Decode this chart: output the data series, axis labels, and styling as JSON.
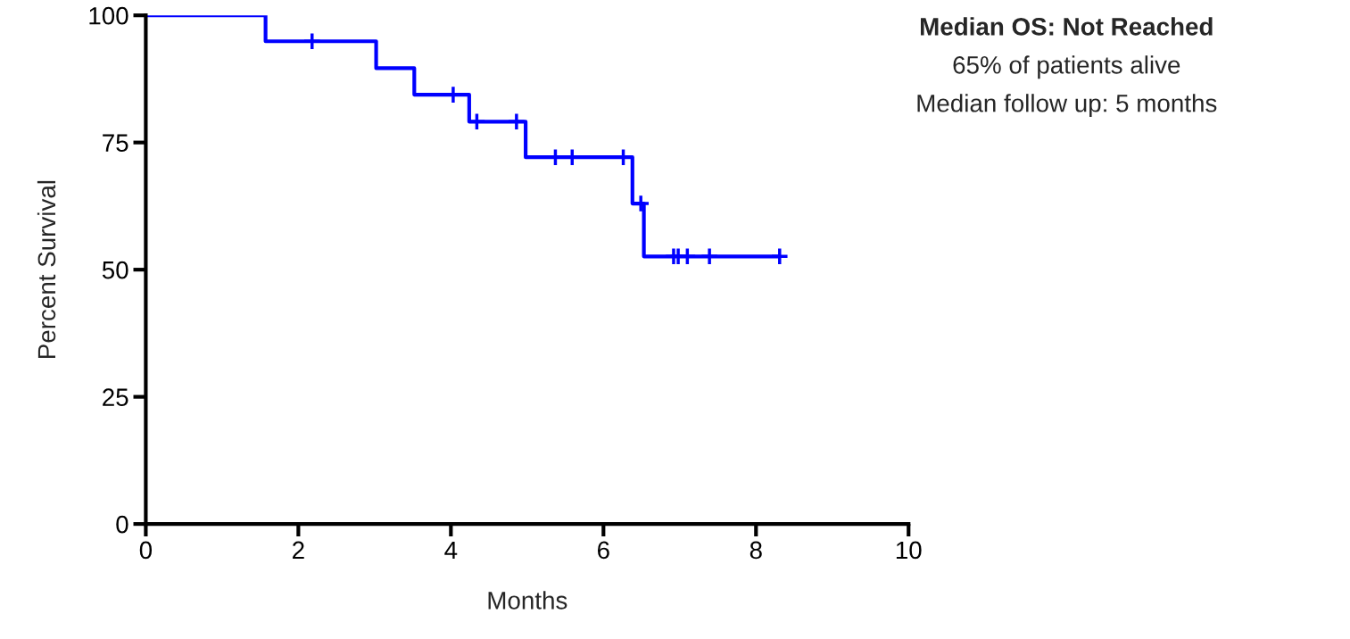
{
  "chart_data": {
    "type": "step",
    "xlabel": "Months",
    "ylabel": "Percent Survival",
    "annotations": [
      "Median OS: Not Reached",
      "65% of patients alive",
      "Median follow up: 5 months"
    ],
    "series": [
      {
        "color": "#0000ff",
        "x": [
          0,
          1.57,
          3.02,
          3.52,
          4.24,
          4.98,
          6.38,
          6.53,
          8.31
        ],
        "values": [
          100,
          94.9,
          89.6,
          84.4,
          79.1,
          72.1,
          63,
          52.6,
          52.6
        ]
      },
      {
        "type": "scatter",
        "marker": "cross",
        "color": "#0000ff",
        "x": [
          2.18,
          4.03,
          4.34,
          4.86,
          5.37,
          5.59,
          6.26,
          6.49,
          6.92,
          6.98,
          7.1,
          7.39,
          8.31
        ],
        "values": [
          94.9,
          84.4,
          79.1,
          79.1,
          72.1,
          72.1,
          72.1,
          63,
          52.6,
          52.6,
          52.6,
          52.6,
          52.6
        ]
      }
    ],
    "xlim": [
      0,
      10
    ],
    "ylim": [
      0,
      100
    ],
    "xticks": [
      0,
      2,
      4,
      6,
      8,
      10
    ],
    "yticks": [
      0,
      25,
      50,
      75,
      100
    ],
    "grid": false,
    "legend": false
  }
}
